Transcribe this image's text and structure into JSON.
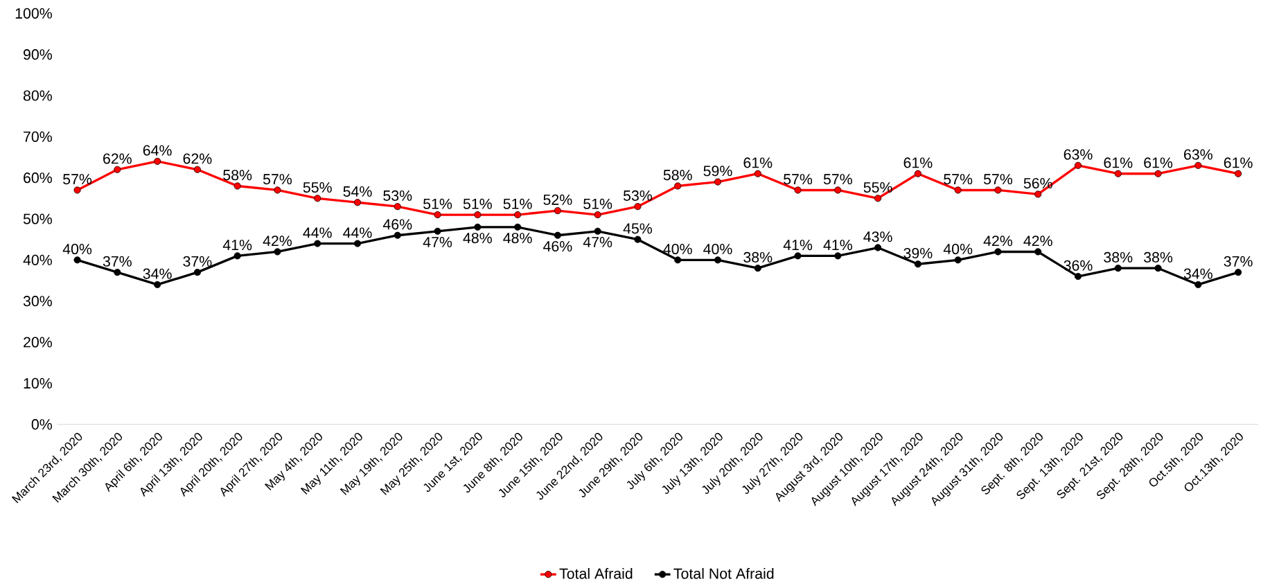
{
  "chart_data": {
    "type": "line",
    "categories": [
      "March 23rd, 2020",
      "March 30th, 2020",
      "April 6th, 2020",
      "April 13th, 2020",
      "April 20th, 2020",
      "April 27th, 2020",
      "May 4th, 2020",
      "May 11th, 2020",
      "May 19th, 2020",
      "May 25th, 2020",
      "June 1st, 2020",
      "June 8th, 2020",
      "June 15th, 2020",
      "June 22nd, 2020",
      "June 29th, 2020",
      "July 6th, 2020",
      "July 13th, 2020",
      "July 20th, 2020",
      "July 27th, 2020",
      "August 3rd, 2020",
      "August 10th, 2020",
      "August 17th, 2020",
      "August 24th, 2020",
      "August 31th, 2020",
      "Sept. 8th, 2020",
      "Sept. 13th, 2020",
      "Sept. 21st, 2020",
      "Sept. 28th, 2020",
      "Oct.5th, 2020",
      "Oct.13th, 2020"
    ],
    "series": [
      {
        "name": "Total Afraid",
        "color": "#ff0000",
        "values": [
          57,
          62,
          64,
          62,
          58,
          57,
          55,
          54,
          53,
          51,
          51,
          51,
          52,
          51,
          53,
          58,
          59,
          61,
          57,
          57,
          55,
          61,
          57,
          57,
          56,
          63,
          61,
          61,
          63,
          61
        ],
        "value_labels": [
          "57%",
          "62%",
          "64%",
          "62%",
          "58%",
          "57%",
          "55%",
          "54%",
          "53%",
          "51%",
          "51%",
          "51%",
          "52%",
          "51%",
          "53%",
          "58%",
          "59%",
          "61%",
          "57%",
          "57%",
          "55%",
          "61%",
          "57%",
          "57%",
          "56%",
          "63%",
          "61%",
          "61%",
          "63%",
          "61%"
        ]
      },
      {
        "name": "Total Not Afraid",
        "color": "#000000",
        "values": [
          40,
          37,
          34,
          37,
          41,
          42,
          44,
          44,
          46,
          47,
          48,
          48,
          46,
          47,
          45,
          40,
          40,
          38,
          41,
          41,
          43,
          39,
          40,
          42,
          42,
          36,
          38,
          38,
          34,
          37
        ],
        "value_labels": [
          "40%",
          "37%",
          "34%",
          "37%",
          "41%",
          "42%",
          "44%",
          "44%",
          "46%",
          "47%",
          "48%",
          "48%",
          "46%",
          "47%",
          "45%",
          "40%",
          "40%",
          "38%",
          "41%",
          "41%",
          "43%",
          "39%",
          "40%",
          "42%",
          "42%",
          "36%",
          "38%",
          "38%",
          "34%",
          "37%"
        ]
      }
    ],
    "ylim": [
      0,
      100
    ],
    "yticks": [
      {
        "value": 0,
        "label": "0%"
      },
      {
        "value": 10,
        "label": "10%"
      },
      {
        "value": 20,
        "label": "20%"
      },
      {
        "value": 30,
        "label": "30%"
      },
      {
        "value": 40,
        "label": "40%"
      },
      {
        "value": 50,
        "label": "50%"
      },
      {
        "value": 60,
        "label": "60%"
      },
      {
        "value": 70,
        "label": "70%"
      },
      {
        "value": 80,
        "label": "80%"
      },
      {
        "value": 90,
        "label": "90%"
      },
      {
        "value": 100,
        "label": "100%"
      }
    ],
    "grid": false,
    "legend": "bottom",
    "marker": "circle",
    "line_style": "solid"
  }
}
